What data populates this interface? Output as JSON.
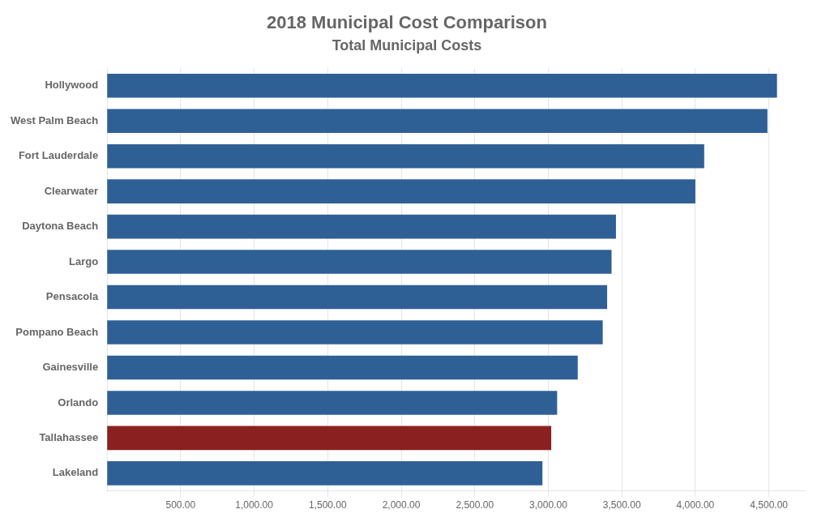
{
  "chart_data": {
    "type": "bar",
    "orientation": "horizontal",
    "title": "2018 Municipal Cost Comparison",
    "subtitle": "Total Municipal Costs",
    "categories": [
      "Hollywood",
      "West Palm Beach",
      "Fort Lauderdale",
      "Clearwater",
      "Daytona Beach",
      "Largo",
      "Pensacola",
      "Pompano Beach",
      "Gainesville",
      "Orlando",
      "Tallahassee",
      "Lakeland"
    ],
    "values": [
      4555,
      4490,
      4060,
      4000,
      3460,
      3430,
      3400,
      3370,
      3200,
      3060,
      3020,
      2960
    ],
    "colors": [
      "#2E6096",
      "#2E6096",
      "#2E6096",
      "#2E6096",
      "#2E6096",
      "#2E6096",
      "#2E6096",
      "#2E6096",
      "#2E6096",
      "#2E6096",
      "#8B2020",
      "#2E6096"
    ],
    "xlim": [
      0,
      4750
    ],
    "xticks": [
      {
        "value": 500,
        "label": "500.00"
      },
      {
        "value": 1000,
        "label": "1,000.00"
      },
      {
        "value": 1500,
        "label": "1,500.00"
      },
      {
        "value": 2000,
        "label": "2,000.00"
      },
      {
        "value": 2500,
        "label": "2,500.00"
      },
      {
        "value": 3000,
        "label": "3,000.00"
      },
      {
        "value": 3500,
        "label": "3,500.00"
      },
      {
        "value": 4000,
        "label": "4,000.00"
      },
      {
        "value": 4500,
        "label": "4,500.00"
      }
    ],
    "grid": true
  }
}
